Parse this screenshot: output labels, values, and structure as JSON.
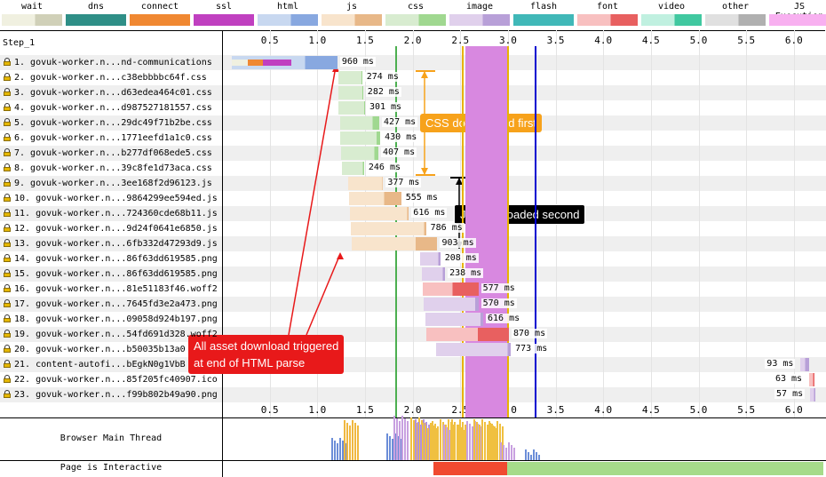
{
  "legend": [
    {
      "label": "wait",
      "color": "#f0f0e0",
      "color2": "#d0d0b8"
    },
    {
      "label": "dns",
      "color": "#2f8f87",
      "color2": "#2f8f87"
    },
    {
      "label": "connect",
      "color": "#f08832",
      "color2": "#f08832"
    },
    {
      "label": "ssl",
      "color": "#c040c0",
      "color2": "#c040c0"
    },
    {
      "label": "html",
      "color": "#c8d8f0",
      "color2": "#88a8e0"
    },
    {
      "label": "js",
      "color": "#f8e4cc",
      "color2": "#e8b888"
    },
    {
      "label": "css",
      "color": "#d8ecd0",
      "color2": "#a0d890"
    },
    {
      "label": "image",
      "color": "#e0d0ec",
      "color2": "#b8a0d8"
    },
    {
      "label": "flash",
      "color": "#40b8b8",
      "color2": "#40b8b8"
    },
    {
      "label": "font",
      "color": "#f8c0c0",
      "color2": "#e86060"
    },
    {
      "label": "video",
      "color": "#c0f0e0",
      "color2": "#40c8a0"
    },
    {
      "label": "other",
      "color": "#e0e0e0",
      "color2": "#b0b0b0"
    },
    {
      "label": "JS Execution",
      "color": "#f8b0f0",
      "color2": "#f8b0f0"
    }
  ],
  "step_label": "Step_1",
  "axis_ticks": [
    "0.5",
    "1.0",
    "1.5",
    "2.0",
    "2.5",
    "3.0",
    "3.5",
    "4.0",
    "4.5",
    "5.0",
    "5.5",
    "6.0"
  ],
  "rows": [
    {
      "label": "1. govuk-worker.n...nd-communications",
      "ms": "960 ms"
    },
    {
      "label": "2. govuk-worker.n...c38ebbbbc64f.css",
      "ms": "274 ms"
    },
    {
      "label": "3. govuk-worker.n...d63edea464c01.css",
      "ms": "282 ms"
    },
    {
      "label": "4. govuk-worker.n...d987527181557.css",
      "ms": "301 ms"
    },
    {
      "label": "5. govuk-worker.n...29dc49f71b2be.css",
      "ms": "427 ms"
    },
    {
      "label": "6. govuk-worker.n...1771eefd1a1c0.css",
      "ms": "430 ms"
    },
    {
      "label": "7. govuk-worker.n...b277df068ede5.css",
      "ms": "407 ms"
    },
    {
      "label": "8. govuk-worker.n...39c8fe1d73aca.css",
      "ms": "246 ms"
    },
    {
      "label": "9. govuk-worker.n...3ee168f2d96123.js",
      "ms": "377 ms"
    },
    {
      "label": "10. govuk-worker.n...9864299ee594ed.js",
      "ms": "555 ms"
    },
    {
      "label": "11. govuk-worker.n...724360cde68b11.js",
      "ms": "616 ms"
    },
    {
      "label": "12. govuk-worker.n...9d24f0641e6850.js",
      "ms": "786 ms"
    },
    {
      "label": "13. govuk-worker.n...6fb332d47293d9.js",
      "ms": "903 ms"
    },
    {
      "label": "14. govuk-worker.n...86f63dd619585.png",
      "ms": "208 ms"
    },
    {
      "label": "15. govuk-worker.n...86f63dd619585.png",
      "ms": "238 ms"
    },
    {
      "label": "16. govuk-worker.n...81e51183f46.woff2",
      "ms": "577 ms"
    },
    {
      "label": "17. govuk-worker.n...7645fd3e2a473.png",
      "ms": "570 ms"
    },
    {
      "label": "18. govuk-worker.n...09058d924b197.png",
      "ms": "616 ms"
    },
    {
      "label": "19. govuk-worker.n...54fd691d328.woff2",
      "ms": "870 ms"
    },
    {
      "label": "20. govuk-worker.n...b50035b13a0",
      "ms": "773 ms"
    },
    {
      "label": "21. content-autofi...bEgkN0g1VbB",
      "ms": "93 ms"
    },
    {
      "label": "22. govuk-worker.n...85f205fc40907.ico",
      "ms": "63 ms"
    },
    {
      "label": "23. govuk-worker.n...f99b802b49a90.png",
      "ms": "57 ms"
    }
  ],
  "bottom_rows": {
    "main_thread": "Browser Main Thread",
    "interactive": "Page is Interactive"
  },
  "callouts": {
    "css": "CSS downloaded first",
    "js": "JS downloaded second",
    "assets_line1": "All asset download triggered",
    "assets_line2": "at end of HTML parse"
  },
  "colors": {
    "callout_css": "#f7a21b",
    "callout_js": "#000000",
    "callout_assets": "#e8191a",
    "js_exec_band": "#d888e0",
    "start_render": "#4caf50",
    "dom_content": "#e8b400",
    "onload": "#0000d0",
    "interactive_bad": "#f04a30",
    "interactive_good": "#a6db8a"
  }
}
